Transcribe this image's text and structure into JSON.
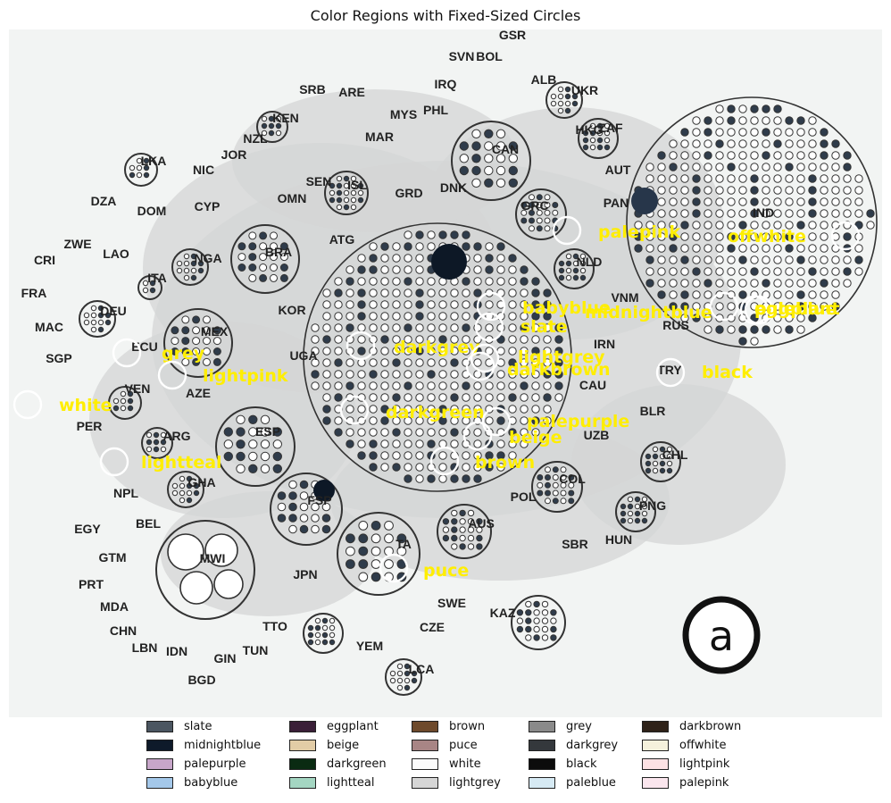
{
  "chart_data": {
    "type": "annotated-image",
    "title": "Color Regions with Fixed-Sized Circles",
    "image_annotation_letter": "a",
    "background_country_labels": [
      "GSR",
      "SVN",
      "BOL",
      "ALB",
      "IRQ",
      "UKR",
      "SRB",
      "ARE",
      "HKG",
      "MYS",
      "PHL",
      "KEN",
      "NZL",
      "JOR",
      "MAR",
      "ZAF",
      "LKA",
      "NIC",
      "CAN",
      "AUT",
      "DZA",
      "CYP",
      "SEN",
      "ISL",
      "OMN",
      "GRC",
      "DNK",
      "DOM",
      "GRD",
      "PAN",
      "IND",
      "ZWE",
      "LAO",
      "ATG",
      "BRA",
      "CRI",
      "NGA",
      "NLD",
      "ITA",
      "FRA",
      "DEU",
      "KOR",
      "MEX",
      "ESP",
      "MAC",
      "SGP",
      "ECU",
      "UGA",
      "RUS",
      "TRY",
      "VEN",
      "AZE",
      "BLR",
      "PER",
      "ARG",
      "CHL",
      "COL",
      "POL",
      "GHA",
      "NPL",
      "BEL",
      "FSP",
      "AUS",
      "PNG",
      "EGY",
      "GTM",
      "MWI",
      "TA",
      "SBR",
      "HUN",
      "JPN",
      "PRT",
      "MDA",
      "SWE",
      "CZE",
      "KAZ",
      "CHN",
      "LBN",
      "IDN",
      "TTO",
      "GIN",
      "TUN",
      "YEM",
      "BGD",
      "LCA",
      "VNM",
      "IRN",
      "CAU",
      "UZB",
      "TUR"
    ],
    "region_markers": [
      {
        "label": "palepink",
        "color": "#fbe6ee"
      },
      {
        "label": "offwhite",
        "color": "#f5f1dc"
      },
      {
        "label": "babyblue",
        "color": "#a4c8ea"
      },
      {
        "label": "midnightblue",
        "color": "#0e1a2a"
      },
      {
        "label": "paleblue",
        "color": "#d6eaf4"
      },
      {
        "label": "eggplant",
        "color": "#3a1f38"
      },
      {
        "label": "slate",
        "color": "#4b5661"
      },
      {
        "label": "grey",
        "color": "#8a8a8a"
      },
      {
        "label": "darkgrey",
        "color": "#34383c"
      },
      {
        "label": "lightgrey",
        "color": "#d6d6d6"
      },
      {
        "label": "lightpink",
        "color": "#fde2e4"
      },
      {
        "label": "darkbrown",
        "color": "#2e2219"
      },
      {
        "label": "black",
        "color": "#0c0c0c"
      },
      {
        "label": "white",
        "color": "#fbfbfb"
      },
      {
        "label": "darkgreen",
        "color": "#0a2b12"
      },
      {
        "label": "palepurple",
        "color": "#c7a6c9"
      },
      {
        "label": "beige",
        "color": "#e2cca6"
      },
      {
        "label": "lightteal",
        "color": "#a4d6c2"
      },
      {
        "label": "brown",
        "color": "#6e4a2c"
      },
      {
        "label": "puce",
        "color": "#a88585"
      }
    ],
    "legend": [
      {
        "label": "slate",
        "color": "#4b5661"
      },
      {
        "label": "midnightblue",
        "color": "#0e1a2a"
      },
      {
        "label": "palepurple",
        "color": "#c7a6c9"
      },
      {
        "label": "babyblue",
        "color": "#a4c8ea"
      },
      {
        "label": "eggplant",
        "color": "#3a1f38"
      },
      {
        "label": "beige",
        "color": "#e2cca6"
      },
      {
        "label": "darkgreen",
        "color": "#0a2b12"
      },
      {
        "label": "lightteal",
        "color": "#a4d6c2"
      },
      {
        "label": "brown",
        "color": "#6e4a2c"
      },
      {
        "label": "puce",
        "color": "#a88585"
      },
      {
        "label": "white",
        "color": "#fbfbfb"
      },
      {
        "label": "lightgrey",
        "color": "#d6d6d6"
      },
      {
        "label": "grey",
        "color": "#8a8a8a"
      },
      {
        "label": "darkgrey",
        "color": "#34383c"
      },
      {
        "label": "black",
        "color": "#0c0c0c"
      },
      {
        "label": "paleblue",
        "color": "#d6eaf4"
      },
      {
        "label": "darkbrown",
        "color": "#2e2219"
      },
      {
        "label": "offwhite",
        "color": "#f5f1dc"
      },
      {
        "label": "lightpink",
        "color": "#fde2e4"
      },
      {
        "label": "palepink",
        "color": "#fbe6ee"
      }
    ],
    "marker_label_color": "#ffee00",
    "marker_ring_color": "#ffffff"
  }
}
